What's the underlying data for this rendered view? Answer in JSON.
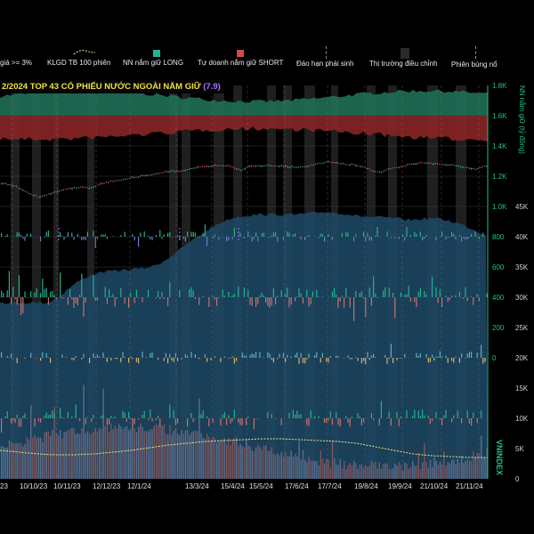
{
  "legend": {
    "price_cut": "giá >= 3%",
    "avg_volume": "KLGD TB 100 phiên",
    "foreign_long": "NN nắm giữ LONG",
    "prop_short": "Tự doanh nắm giữ SHORT",
    "derivative_expiry": "Đáo hạn phái sinh",
    "market_correction": "Thị trường điều chỉnh",
    "breakout": "Phiên bùng nổ"
  },
  "title": {
    "text": "2/2024  TOP 43  CỔ PHIẾU NƯỚC NGOÀI NẮM GIỮ",
    "value": "(7.9)"
  },
  "colors": {
    "long": "#1f6f55",
    "short": "#8a2525",
    "holding_area": "#1d4a68",
    "up": "#26b08e",
    "down": "#d04a4a",
    "band": "#2a2a2a",
    "axis_green": "#22c08a"
  },
  "chart_data": {
    "type": "multi-panel",
    "x_labels": [
      "23",
      "10/10/23",
      "10/11/23",
      "12/12/23",
      "12/1/24",
      "13/3/24",
      "15/4/24",
      "15/5/24",
      "17/6/24",
      "17/7/24",
      "19/8/24",
      "19/9/24",
      "21/10/24",
      "21/11/24"
    ],
    "right_axis_1": [
      "1.8K",
      "1.6K",
      "1.4K",
      "1.2K",
      "1.0K",
      "800",
      "600",
      "400",
      "200",
      "0"
    ],
    "right_axis_2": [
      "45K",
      "40K",
      "35K",
      "30K",
      "25K",
      "20K",
      "15K",
      "10K",
      "5K",
      "0"
    ],
    "axis_label_1": "NN nắm giữ (tỷ đồng)",
    "axis_label_2": "VNINDEX",
    "index_price": [
      1155,
      1148,
      1139,
      1120,
      1097,
      1080,
      1062,
      1075,
      1088,
      1100,
      1112,
      1118,
      1125,
      1130,
      1122,
      1135,
      1150,
      1162,
      1170,
      1176,
      1185,
      1192,
      1198,
      1206,
      1213,
      1220,
      1228,
      1235,
      1230,
      1240,
      1252,
      1258,
      1262,
      1265,
      1270,
      1272,
      1267,
      1252,
      1240,
      1260,
      1268,
      1270,
      1272,
      1270,
      1268,
      1265,
      1262,
      1260,
      1265,
      1272,
      1282,
      1290,
      1295,
      1288,
      1282,
      1278,
      1275,
      1265,
      1250,
      1232,
      1228,
      1245,
      1255,
      1262,
      1270,
      1282,
      1286,
      1290,
      1285,
      1280,
      1278,
      1276,
      1270,
      1262,
      1255,
      1248,
      1262,
      1270
    ],
    "foreign_holding_norm": [
      0.0,
      0.0,
      0.0,
      0.0,
      0.0,
      0.0,
      0.05,
      0.14,
      0.22,
      0.28,
      0.32,
      0.34,
      0.35,
      0.36,
      0.37,
      0.38,
      0.4,
      0.45,
      0.52,
      0.6,
      0.68,
      0.75,
      0.82,
      0.88,
      0.92,
      0.95,
      0.96,
      0.97,
      0.97,
      0.97,
      0.97,
      0.97,
      0.98,
      0.99,
      1.0,
      0.99,
      0.98,
      0.96,
      0.95,
      0.94,
      0.94,
      0.93,
      0.92,
      0.91,
      0.92,
      0.93,
      0.92,
      0.9,
      0.87,
      0.83,
      0.78,
      0.74
    ],
    "volume_avg_norm": [
      0.32,
      0.3,
      0.28,
      0.27,
      0.27,
      0.28,
      0.3,
      0.32,
      0.35,
      0.38,
      0.4,
      0.42,
      0.43,
      0.44,
      0.45,
      0.45,
      0.44,
      0.43,
      0.42,
      0.4,
      0.36,
      0.32,
      0.28,
      0.26,
      0.25,
      0.24,
      0.24
    ]
  }
}
